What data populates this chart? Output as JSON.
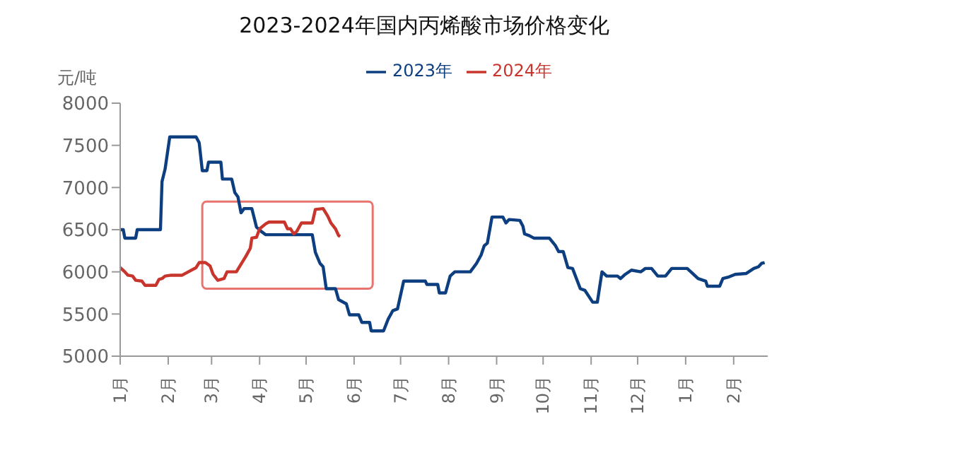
{
  "chart_data": {
    "type": "line",
    "title": "2023-2024年国内丙烯酸市场价格变化",
    "ylabel": "元/吨",
    "xlim": [
      "2023-01-01",
      "2024-02-23"
    ],
    "xticks": [
      {
        "value": "2023-01-01",
        "label": "1月"
      },
      {
        "value": "2023-02-01",
        "label": "2月"
      },
      {
        "value": "2023-03-01",
        "label": "3月"
      },
      {
        "value": "2023-04-01",
        "label": "4月"
      },
      {
        "value": "2023-05-01",
        "label": "5月"
      },
      {
        "value": "2023-06-01",
        "label": "6月"
      },
      {
        "value": "2023-07-01",
        "label": "7月"
      },
      {
        "value": "2023-08-01",
        "label": "8月"
      },
      {
        "value": "2023-09-01",
        "label": "9月"
      },
      {
        "value": "2023-10-01",
        "label": "10月"
      },
      {
        "value": "2023-11-01",
        "label": "11月"
      },
      {
        "value": "2023-12-01",
        "label": "12月"
      },
      {
        "value": "2024-01-01",
        "label": "1月"
      },
      {
        "value": "2024-02-01",
        "label": "2月"
      }
    ],
    "ylim": [
      5000,
      8000
    ],
    "yticks": [
      5000,
      5500,
      6000,
      6500,
      7000,
      7500,
      8000
    ],
    "grid": false,
    "legend": "top",
    "marker": "none",
    "line_style": "solid",
    "series": [
      {
        "name": "2023年",
        "color": "#0d3f80",
        "x": [
          "2023-01-01",
          "2023-01-03",
          "2023-01-04",
          "2023-01-11",
          "2023-01-12",
          "2023-01-27",
          "2023-01-28",
          "2023-01-30",
          "2023-02-02",
          "2023-02-19",
          "2023-02-21",
          "2023-02-23",
          "2023-02-26",
          "2023-02-27",
          "2023-03-07",
          "2023-03-08",
          "2023-03-14",
          "2023-03-16",
          "2023-03-18",
          "2023-03-20",
          "2023-03-22",
          "2023-03-27",
          "2023-03-30",
          "2023-04-02",
          "2023-04-05",
          "2023-05-05",
          "2023-05-07",
          "2023-05-10",
          "2023-05-12",
          "2023-05-14",
          "2023-05-20",
          "2023-05-22",
          "2023-05-27",
          "2023-05-29",
          "2023-06-04",
          "2023-06-06",
          "2023-06-11",
          "2023-06-12",
          "2023-06-20",
          "2023-06-23",
          "2023-06-26",
          "2023-06-29",
          "2023-07-03",
          "2023-07-17",
          "2023-07-18",
          "2023-07-25",
          "2023-07-26",
          "2023-07-30",
          "2023-08-02",
          "2023-08-05",
          "2023-08-15",
          "2023-08-19",
          "2023-08-22",
          "2023-08-24",
          "2023-08-26",
          "2023-08-29",
          "2023-09-05",
          "2023-09-07",
          "2023-09-09",
          "2023-09-16",
          "2023-09-18",
          "2023-09-19",
          "2023-09-22",
          "2023-09-25",
          "2023-10-05",
          "2023-10-09",
          "2023-10-11",
          "2023-10-14",
          "2023-10-17",
          "2023-10-20",
          "2023-10-25",
          "2023-10-28",
          "2023-11-02",
          "2023-11-05",
          "2023-11-08",
          "2023-11-11",
          "2023-11-18",
          "2023-11-20",
          "2023-11-23",
          "2023-11-27",
          "2023-12-03",
          "2023-12-06",
          "2023-12-10",
          "2023-12-14",
          "2023-12-19",
          "2023-12-23",
          "2024-01-02",
          "2024-01-05",
          "2024-01-09",
          "2024-01-14",
          "2024-01-15",
          "2024-01-23",
          "2024-01-25",
          "2024-01-29",
          "2024-02-02",
          "2024-02-09",
          "2024-02-14",
          "2024-02-17",
          "2024-02-19",
          "2024-02-21"
        ],
        "values": [
          6500,
          6500,
          6400,
          6400,
          6500,
          6500,
          7070,
          7220,
          7600,
          7600,
          7530,
          7200,
          7200,
          7300,
          7300,
          7100,
          7100,
          6940,
          6890,
          6700,
          6750,
          6750,
          6530,
          6480,
          6440,
          6440,
          6230,
          6100,
          6060,
          5800,
          5800,
          5670,
          5620,
          5490,
          5490,
          5400,
          5400,
          5300,
          5300,
          5440,
          5540,
          5560,
          5890,
          5890,
          5850,
          5850,
          5750,
          5750,
          5950,
          6000,
          6000,
          6100,
          6200,
          6310,
          6340,
          6650,
          6650,
          6580,
          6620,
          6610,
          6540,
          6450,
          6430,
          6400,
          6400,
          6310,
          6240,
          6240,
          6050,
          6040,
          5800,
          5780,
          5640,
          5640,
          6000,
          5950,
          5950,
          5920,
          5970,
          6020,
          6000,
          6040,
          6040,
          5950,
          5950,
          6040,
          6040,
          5990,
          5920,
          5890,
          5830,
          5830,
          5920,
          5940,
          5970,
          5980,
          6040,
          6060,
          6100,
          6110
        ]
      },
      {
        "name": "2024年",
        "color": "#c8352d",
        "x": [
          "2023-01-01",
          "2023-01-04",
          "2023-01-06",
          "2023-01-09",
          "2023-01-11",
          "2023-01-15",
          "2023-01-17",
          "2023-01-24",
          "2023-01-26",
          "2023-01-28",
          "2023-01-30",
          "2023-02-03",
          "2023-02-10",
          "2023-02-14",
          "2023-02-19",
          "2023-02-21",
          "2023-02-25",
          "2023-02-28",
          "2023-03-02",
          "2023-03-05",
          "2023-03-09",
          "2023-03-11",
          "2023-03-17",
          "2023-03-20",
          "2023-03-23",
          "2023-03-26",
          "2023-03-27",
          "2023-03-30",
          "2023-04-01",
          "2023-04-05",
          "2023-04-07",
          "2023-04-17",
          "2023-04-19",
          "2023-04-21",
          "2023-04-23",
          "2023-04-25",
          "2023-04-28",
          "2023-05-05",
          "2023-05-07",
          "2023-05-12",
          "2023-05-15",
          "2023-05-17",
          "2023-05-20",
          "2023-05-22",
          "2023-05-23"
        ],
        "values": [
          6050,
          6000,
          5960,
          5950,
          5900,
          5890,
          5840,
          5840,
          5910,
          5920,
          5950,
          5960,
          5960,
          6000,
          6050,
          6110,
          6110,
          6070,
          5970,
          5900,
          5920,
          6000,
          6000,
          6090,
          6180,
          6280,
          6400,
          6410,
          6510,
          6570,
          6590,
          6590,
          6510,
          6510,
          6450,
          6480,
          6580,
          6580,
          6740,
          6750,
          6660,
          6580,
          6510,
          6430,
          6420
        ]
      }
    ]
  }
}
